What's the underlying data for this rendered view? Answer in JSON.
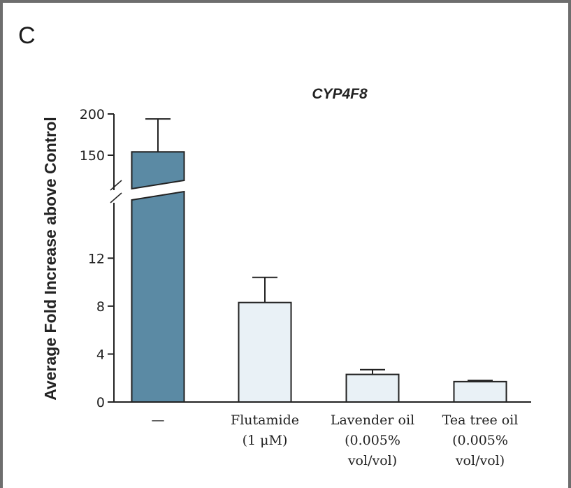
{
  "panel_label": "C",
  "chart_data": {
    "type": "bar",
    "title": "CYP4F8",
    "ylabel": "Average Fold Increase above Control",
    "categories": [
      [
        "—"
      ],
      [
        "Flutamide",
        "(1 μM)"
      ],
      [
        "Lavender oil",
        "(0.005%",
        "vol/vol)"
      ],
      [
        "Tea tree oil",
        "(0.005%",
        "vol/vol)"
      ]
    ],
    "values": [
      154,
      8.3,
      2.3,
      1.7
    ],
    "error_upper": [
      194,
      10.4,
      2.7,
      1.8
    ],
    "y_axis_broken": true,
    "ylim_lower": [
      0,
      14
    ],
    "ylim_upper": [
      150,
      200
    ],
    "yticks_lower": [
      "0",
      "4",
      "8",
      "12"
    ],
    "yticks_upper": [
      "150",
      "200"
    ],
    "colors": {
      "control_bar": "#5b8aa4",
      "treatment_bar": "#e9f1f6",
      "outline": "#222222"
    }
  }
}
